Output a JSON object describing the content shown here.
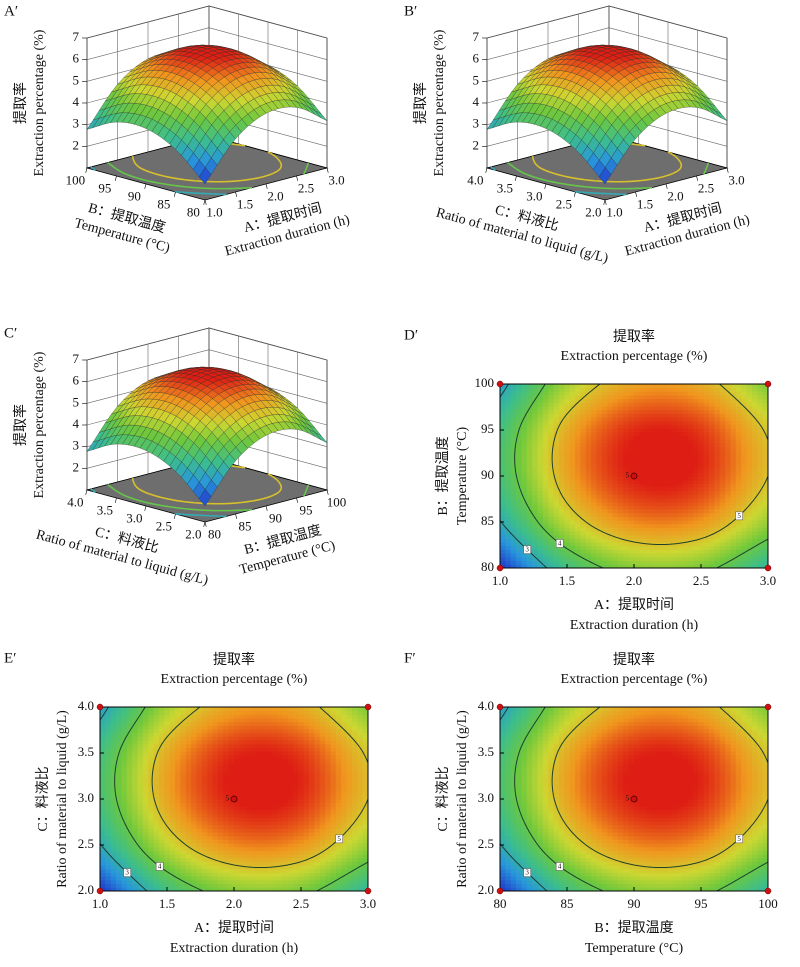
{
  "chart_data": [
    {
      "type": "surface",
      "label": "A′",
      "x_label": [
        "A：提取时间",
        "Extraction duration (h)"
      ],
      "xlim": [
        1,
        3
      ],
      "xticks": [
        {
          "value": 1,
          "label": "1.0"
        },
        1.5,
        {
          "value": 2,
          "label": "2.0"
        },
        2.5,
        {
          "value": 3,
          "label": "3.0"
        }
      ],
      "y_label": [
        "B：提取温度",
        "Temperature (°C)"
      ],
      "ylim": [
        80,
        100
      ],
      "yticks": [
        80,
        85,
        90,
        95,
        100
      ],
      "z_label": [
        "提取率",
        "Extraction percentage (%)"
      ],
      "zlim": [
        1,
        7
      ],
      "zticks": [
        2,
        3,
        4,
        5,
        6,
        7
      ],
      "z": [
        [
          1.74,
          3.45,
          4.26,
          4.17,
          3.18
        ],
        [
          2.97,
          4.68,
          5.49,
          5.4,
          4.41
        ],
        [
          3.56,
          5.27,
          6.08,
          5.99,
          5.0
        ],
        [
          3.49,
          5.2,
          6.01,
          5.92,
          4.93
        ],
        [
          2.78,
          4.49,
          5.3,
          5.21,
          4.22
        ]
      ],
      "contour_levels": [
        3,
        4,
        5
      ]
    },
    {
      "type": "surface",
      "label": "B′",
      "x_label": [
        "A：提取时间",
        "Extraction duration (h)"
      ],
      "xlim": [
        1,
        3
      ],
      "xticks": [
        {
          "value": 1,
          "label": "1.0"
        },
        1.5,
        {
          "value": 2,
          "label": "2.0"
        },
        2.5,
        {
          "value": 3,
          "label": "3.0"
        }
      ],
      "y_label": [
        "C：料液比",
        "Ratio of material to liquid (g/L)"
      ],
      "ylim": [
        2,
        4
      ],
      "yticks": [
        {
          "value": 2,
          "label": "2.0"
        },
        2.5,
        {
          "value": 3,
          "label": "3.0"
        },
        3.5,
        {
          "value": 4,
          "label": "4.0"
        }
      ],
      "z_label": [
        "提取率",
        "Extraction percentage (%)"
      ],
      "zlim": [
        1,
        7
      ],
      "zticks": [
        2,
        3,
        4,
        5,
        6,
        7
      ],
      "z": [
        [
          1.74,
          3.45,
          4.26,
          4.17,
          3.18
        ],
        [
          2.97,
          4.68,
          5.49,
          5.4,
          4.41
        ],
        [
          3.56,
          5.27,
          6.08,
          5.99,
          5.0
        ],
        [
          3.49,
          5.2,
          6.01,
          5.92,
          4.93
        ],
        [
          2.78,
          4.49,
          5.3,
          5.21,
          4.22
        ]
      ],
      "contour_levels": [
        3,
        4,
        5
      ]
    },
    {
      "type": "surface",
      "label": "C′",
      "x_label": [
        "B：提取温度",
        "Temperature (°C)"
      ],
      "xlim": [
        80,
        100
      ],
      "xticks": [
        80,
        85,
        90,
        95,
        100
      ],
      "y_label": [
        "C：料液比",
        "Ratio of material to liquid (g/L)"
      ],
      "ylim": [
        2,
        4
      ],
      "yticks": [
        {
          "value": 2,
          "label": "2.0"
        },
        2.5,
        {
          "value": 3,
          "label": "3.0"
        },
        3.5,
        {
          "value": 4,
          "label": "4.0"
        }
      ],
      "z_label": [
        "提取率",
        "Extraction percentage (%)"
      ],
      "zlim": [
        1,
        7
      ],
      "zticks": [
        2,
        3,
        4,
        5,
        6,
        7
      ],
      "z": [
        [
          1.74,
          3.45,
          4.26,
          4.17,
          3.18
        ],
        [
          2.97,
          4.68,
          5.49,
          5.4,
          4.41
        ],
        [
          3.56,
          5.27,
          6.08,
          5.99,
          5.0
        ],
        [
          3.49,
          5.2,
          6.01,
          5.92,
          4.93
        ],
        [
          2.78,
          4.49,
          5.3,
          5.21,
          4.22
        ]
      ],
      "contour_levels": [
        3,
        4,
        5
      ]
    },
    {
      "type": "contour",
      "label": "D′",
      "title": [
        "提取率",
        "Extraction percentage (%)"
      ],
      "x_label": [
        "A：提取时间",
        "Extraction duration (h)"
      ],
      "xlim": [
        1,
        3
      ],
      "xticks": [
        {
          "value": 1,
          "label": "1.0"
        },
        1.5,
        {
          "value": 2,
          "label": "2.0"
        },
        2.5,
        {
          "value": 3,
          "label": "3.0"
        }
      ],
      "y_label": [
        "B：提取温度",
        "Temperature (°C)"
      ],
      "ylim": [
        80,
        100
      ],
      "yticks": [
        80,
        85,
        90,
        95,
        100
      ],
      "z": [
        [
          1.74,
          3.45,
          4.26,
          4.17,
          3.18
        ],
        [
          2.97,
          4.68,
          5.49,
          5.4,
          4.41
        ],
        [
          3.56,
          5.27,
          6.08,
          5.99,
          5.0
        ],
        [
          3.49,
          5.2,
          6.01,
          5.92,
          4.93
        ],
        [
          2.78,
          4.49,
          5.3,
          5.21,
          4.22
        ]
      ],
      "contour_levels": [
        3,
        4,
        5
      ],
      "design_points": {
        "x": [
          1,
          1,
          3,
          3
        ],
        "y": [
          80,
          100,
          80,
          100
        ]
      },
      "center_point": {
        "x": 2,
        "y": 90,
        "replicates": 5
      }
    },
    {
      "type": "contour",
      "label": "E′",
      "title": [
        "提取率",
        "Extraction percentage (%)"
      ],
      "x_label": [
        "A：提取时间",
        "Extraction duration (h)"
      ],
      "xlim": [
        1,
        3
      ],
      "xticks": [
        {
          "value": 1,
          "label": "1.0"
        },
        1.5,
        {
          "value": 2,
          "label": "2.0"
        },
        2.5,
        {
          "value": 3,
          "label": "3.0"
        }
      ],
      "y_label": [
        "C：料液比",
        "Ratio of material to liquid (g/L)"
      ],
      "ylim": [
        2,
        4
      ],
      "yticks": [
        {
          "value": 2,
          "label": "2.0"
        },
        2.5,
        {
          "value": 3,
          "label": "3.0"
        },
        3.5,
        {
          "value": 4,
          "label": "4.0"
        }
      ],
      "z": [
        [
          1.74,
          3.45,
          4.26,
          4.17,
          3.18
        ],
        [
          2.97,
          4.68,
          5.49,
          5.4,
          4.41
        ],
        [
          3.56,
          5.27,
          6.08,
          5.99,
          5.0
        ],
        [
          3.49,
          5.2,
          6.01,
          5.92,
          4.93
        ],
        [
          2.78,
          4.49,
          5.3,
          5.21,
          4.22
        ]
      ],
      "contour_levels": [
        3,
        4,
        5
      ],
      "design_points": {
        "x": [
          1,
          1,
          3,
          3
        ],
        "y": [
          2,
          4,
          2,
          4
        ]
      },
      "center_point": {
        "x": 2,
        "y": 3,
        "replicates": 5
      }
    },
    {
      "type": "contour",
      "label": "F′",
      "title": [
        "提取率",
        "Extraction percentage (%)"
      ],
      "x_label": [
        "B：提取温度",
        "Temperature (°C)"
      ],
      "xlim": [
        80,
        100
      ],
      "xticks": [
        80,
        85,
        90,
        95,
        100
      ],
      "y_label": [
        "C：料液比",
        "Ratio of material to liquid (g/L)"
      ],
      "ylim": [
        2,
        4
      ],
      "yticks": [
        {
          "value": 2,
          "label": "2.0"
        },
        2.5,
        {
          "value": 3,
          "label": "3.0"
        },
        3.5,
        {
          "value": 4,
          "label": "4.0"
        }
      ],
      "z": [
        [
          1.74,
          3.45,
          4.26,
          4.17,
          3.18
        ],
        [
          2.97,
          4.68,
          5.49,
          5.4,
          4.41
        ],
        [
          3.56,
          5.27,
          6.08,
          5.99,
          5.0
        ],
        [
          3.49,
          5.2,
          6.01,
          5.92,
          4.93
        ],
        [
          2.78,
          4.49,
          5.3,
          5.21,
          4.22
        ]
      ],
      "contour_levels": [
        3,
        4,
        5
      ],
      "design_points": {
        "x": [
          80,
          80,
          100,
          100
        ],
        "y": [
          2,
          4,
          2,
          4
        ]
      },
      "center_point": {
        "x": 90,
        "y": 3,
        "replicates": 5
      }
    }
  ]
}
